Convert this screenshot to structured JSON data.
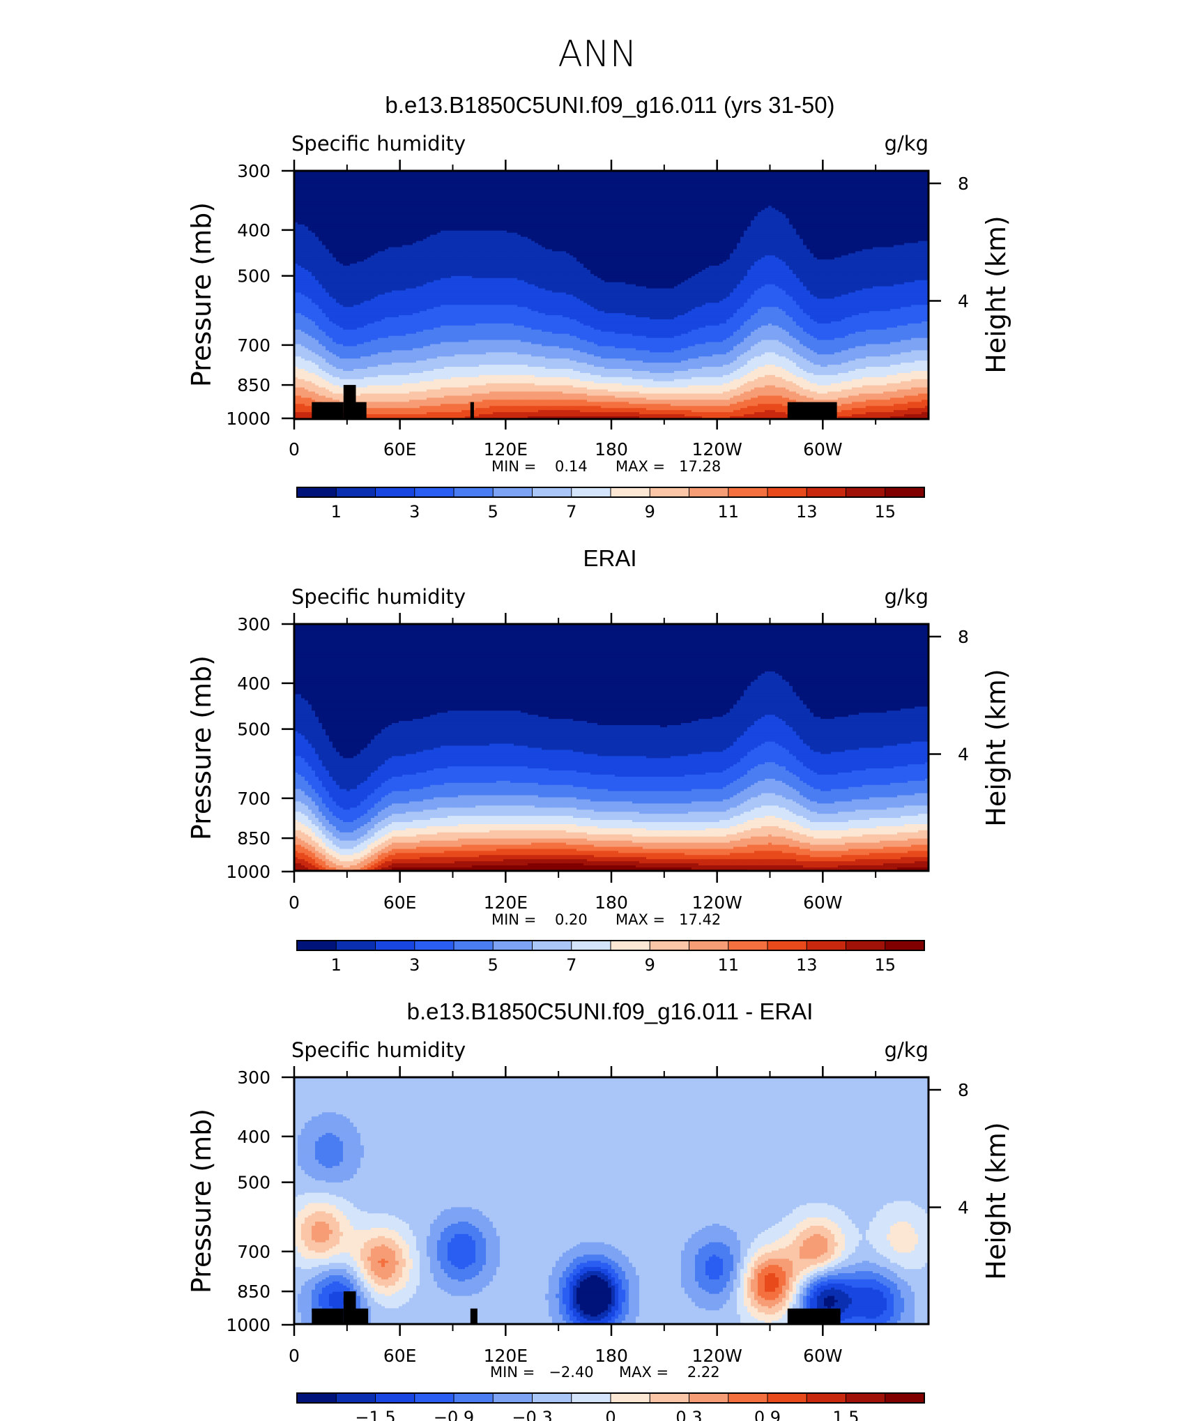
{
  "page_title": "ANN",
  "panels": [
    {
      "title": "b.e13.B1850C5UNI.f09_g16.011 (yrs 31-50)",
      "left_label": "Specific humidity",
      "right_label": "g/kg",
      "min_label": "MIN =    0.14",
      "max_label": "MAX =   17.28"
    },
    {
      "title": "ERAI",
      "left_label": "Specific humidity",
      "right_label": "g/kg",
      "min_label": "MIN =    0.20",
      "max_label": "MAX =   17.42"
    },
    {
      "title": "b.e13.B1850C5UNI.f09_g16.011 - ERAI",
      "left_label": "Specific humidity",
      "right_label": "g/kg",
      "min_label": "MIN =   −2.40",
      "max_label": "MAX =    2.22"
    }
  ],
  "axes": {
    "ylabel": "Pressure (mb)",
    "y2label": "Height (km)",
    "y_ticks": [
      "300",
      "400",
      "500",
      "700",
      "850",
      "1000"
    ],
    "y2_ticks": [
      "8",
      "4"
    ],
    "x_ticks": [
      "0",
      "60E",
      "120E",
      "180",
      "120W",
      "60W"
    ]
  },
  "colorbars": {
    "abs_labels": [
      "1",
      "3",
      "5",
      "7",
      "9",
      "11",
      "13",
      "15"
    ],
    "diff_labels": [
      "−1.5",
      "−0.9",
      "−0.3",
      "0",
      "0.3",
      "0.9",
      "1.5"
    ],
    "colors": [
      "#00137a",
      "#0a2fb0",
      "#1746e0",
      "#2a5ef2",
      "#4a7df2",
      "#7da3f5",
      "#aac5f7",
      "#d4e4fa",
      "#fbe7d4",
      "#fbc6a8",
      "#f79d76",
      "#f4713f",
      "#e84a1c",
      "#c8290e",
      "#a01208",
      "#800000"
    ]
  },
  "chart_data": [
    {
      "type": "heatmap",
      "title": "b.e13.B1850C5UNI.f09_g16.011 (yrs 31-50)",
      "variable": "Specific humidity",
      "units": "g/kg",
      "xlabel": "",
      "ylabel": "Pressure (mb)",
      "y2label": "Height (km)",
      "xlim": [
        0,
        360
      ],
      "ylim": [
        1000,
        300
      ],
      "contour_levels": [
        1,
        2,
        3,
        4,
        5,
        6,
        7,
        8,
        9,
        10,
        11,
        12,
        13,
        14,
        15
      ],
      "min": 0.14,
      "max": 17.28,
      "longitudes": [
        0,
        30,
        60,
        90,
        120,
        150,
        180,
        210,
        240,
        270,
        300,
        330,
        360
      ],
      "pressures": [
        300,
        400,
        500,
        700,
        850,
        1000
      ],
      "surface_value_row": [
        14.0,
        13.0,
        12.5,
        13.0,
        14.0,
        14.5,
        14.5,
        14.0,
        13.0,
        14.0,
        13.0,
        14.0,
        15.0
      ],
      "top_value_row": [
        0.5,
        0.5,
        0.5,
        0.6,
        0.6,
        0.5,
        0.2,
        0.2,
        0.3,
        0.7,
        0.4,
        0.4,
        0.4
      ],
      "decay_scale": [
        1.4,
        0.95,
        1.15,
        1.25,
        1.2,
        1.05,
        0.9,
        0.85,
        1.05,
        1.45,
        1.05,
        1.15,
        1.2
      ],
      "topography_mask": [
        [
          10,
          28,
          924
        ],
        [
          28,
          35,
          850
        ],
        [
          35,
          41,
          924
        ],
        [
          100,
          102,
          924
        ],
        [
          280,
          308,
          924
        ]
      ]
    },
    {
      "type": "heatmap",
      "title": "ERAI",
      "variable": "Specific humidity",
      "units": "g/kg",
      "xlabel": "",
      "ylabel": "Pressure (mb)",
      "y2label": "Height (km)",
      "xlim": [
        0,
        360
      ],
      "ylim": [
        1000,
        300
      ],
      "contour_levels": [
        1,
        2,
        3,
        4,
        5,
        6,
        7,
        8,
        9,
        10,
        11,
        12,
        13,
        14,
        15
      ],
      "min": 0.2,
      "max": 17.42,
      "longitudes": [
        0,
        30,
        60,
        90,
        120,
        150,
        180,
        210,
        240,
        270,
        300,
        330,
        360
      ],
      "pressures": [
        300,
        400,
        500,
        700,
        850,
        1000
      ],
      "surface_value_row": [
        15.5,
        11.0,
        16.0,
        16.0,
        16.5,
        17.0,
        16.5,
        16.0,
        15.5,
        15.0,
        15.0,
        15.5,
        16.0
      ],
      "top_value_row": [
        0.4,
        0.3,
        0.3,
        0.3,
        0.3,
        0.2,
        0.2,
        0.2,
        0.3,
        0.6,
        0.3,
        0.3,
        0.3
      ],
      "decay_scale": [
        1.2,
        0.75,
        0.95,
        1.05,
        1.05,
        1.0,
        0.95,
        0.95,
        1.0,
        1.35,
        1.0,
        1.05,
        1.1
      ],
      "topography_mask": []
    },
    {
      "type": "heatmap",
      "title": "b.e13.B1850C5UNI.f09_g16.011 - ERAI",
      "variable": "Specific humidity",
      "units": "g/kg",
      "xlabel": "",
      "ylabel": "Pressure (mb)",
      "y2label": "Height (km)",
      "xlim": [
        0,
        360
      ],
      "ylim": [
        1000,
        300
      ],
      "contour_levels": [
        -2.1,
        -1.8,
        -1.5,
        -1.2,
        -0.9,
        -0.6,
        -0.3,
        0,
        0.3,
        0.6,
        0.9,
        1.2,
        1.5,
        1.8,
        2.1
      ],
      "min": -2.4,
      "max": 2.22,
      "longitudes": [
        0,
        30,
        60,
        90,
        120,
        150,
        180,
        210,
        240,
        270,
        300,
        330,
        360
      ],
      "pressures": [
        300,
        400,
        500,
        700,
        850,
        1000
      ],
      "features": [
        {
          "lon": 15,
          "p": 640,
          "value": 1.2
        },
        {
          "lon": 50,
          "p": 740,
          "value": 1.4
        },
        {
          "lon": 25,
          "p": 880,
          "value": -1.2
        },
        {
          "lon": 95,
          "p": 700,
          "value": -1.0
        },
        {
          "lon": 170,
          "p": 870,
          "value": -2.4
        },
        {
          "lon": 240,
          "p": 760,
          "value": -0.9
        },
        {
          "lon": 270,
          "p": 820,
          "value": 1.8
        },
        {
          "lon": 297,
          "p": 700,
          "value": 1.4
        },
        {
          "lon": 302,
          "p": 880,
          "value": -1.8
        },
        {
          "lon": 20,
          "p": 430,
          "value": -0.6
        },
        {
          "lon": 345,
          "p": 660,
          "value": 0.6
        },
        {
          "lon": 330,
          "p": 900,
          "value": -1.2
        }
      ],
      "topography_mask": [
        [
          10,
          28,
          924
        ],
        [
          28,
          35,
          850
        ],
        [
          35,
          42,
          924
        ],
        [
          100,
          104,
          924
        ],
        [
          280,
          310,
          924
        ]
      ]
    }
  ]
}
